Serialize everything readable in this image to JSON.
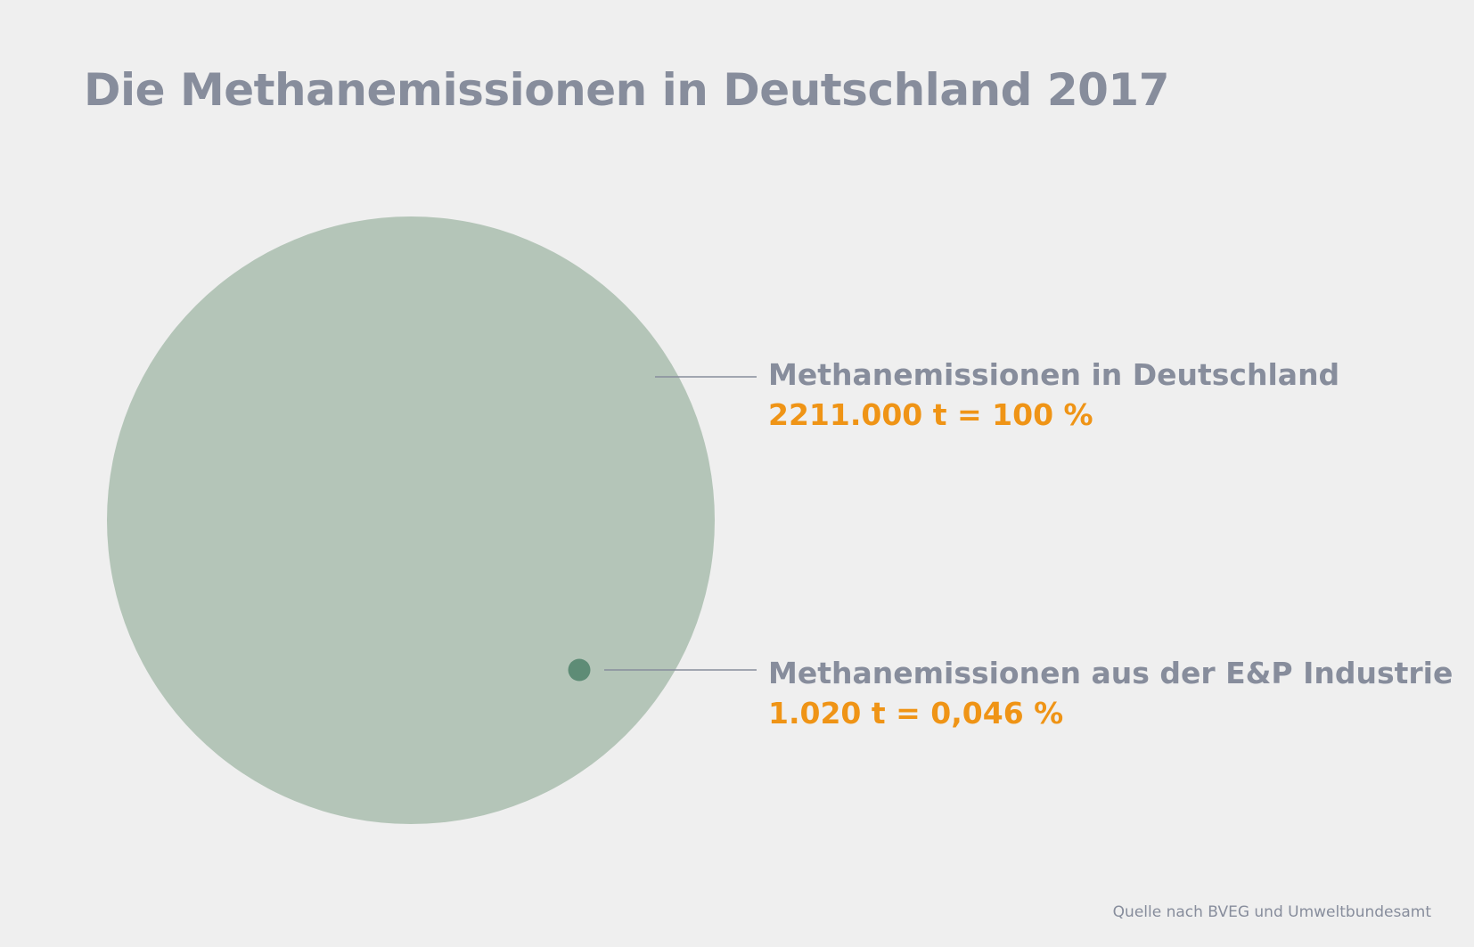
{
  "chart_data": {
    "type": "bubble",
    "title": "Die Methanemissionen in Deutschland 2017",
    "unit": "t",
    "series": [
      {
        "name": "Methanemissionen in Deutschland",
        "value": 2211000,
        "value_label": "2211.000 t = 100 %",
        "percent": 100,
        "color": "#b4c5b8"
      },
      {
        "name": "Methanemissionen aus der E&P Industrie",
        "value": 1020,
        "value_label": "1.020 t = 0,046 %",
        "percent": 0.046,
        "color": "#5e8c76"
      }
    ],
    "label_color": "#878d9c",
    "value_color": "#ef9416",
    "leader_color": "#878d9c"
  },
  "footer": {
    "source": "Quelle nach BVEG und Umweltbundesamt"
  }
}
